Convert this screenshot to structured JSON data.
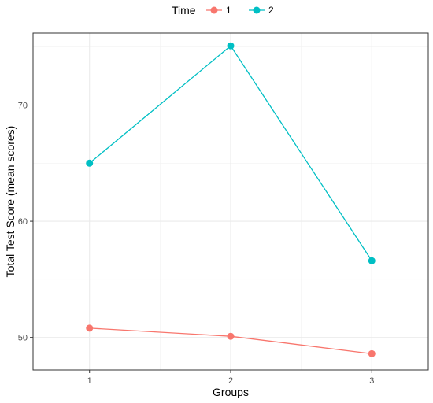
{
  "chart_data": {
    "type": "line",
    "xlabel": "Groups",
    "ylabel": "Total Test Score (mean scores)",
    "x": [
      1,
      2,
      3
    ],
    "x_ticks": [
      "1",
      "2",
      "3"
    ],
    "xlim": [
      0.6,
      3.4
    ],
    "y_ticks": [
      50,
      60,
      70
    ],
    "ylim": [
      47.2,
      76.2
    ],
    "grid": true,
    "legend": {
      "title": "Time",
      "position": "top"
    },
    "series": [
      {
        "name": "1",
        "color": "#F8766D",
        "values": [
          50.8,
          50.1,
          48.6
        ]
      },
      {
        "name": "2",
        "color": "#00BFC4",
        "values": [
          65.0,
          75.1,
          56.6
        ]
      }
    ]
  }
}
